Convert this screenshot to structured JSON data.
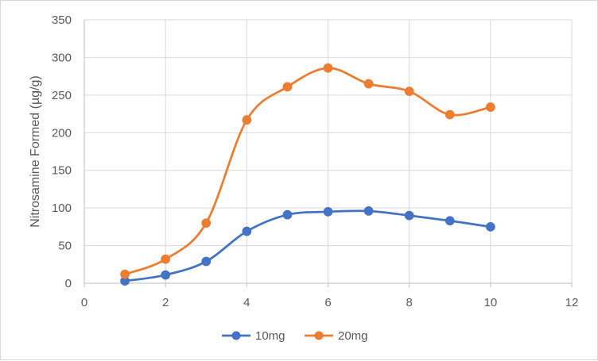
{
  "chart_data": {
    "type": "scatter",
    "title": "",
    "xlabel": "",
    "ylabel": "Nitrosamine Formed (µg/g)",
    "xlim": [
      0,
      12
    ],
    "ylim": [
      0,
      350
    ],
    "x_ticks": [
      0,
      2,
      4,
      6,
      8,
      10,
      12
    ],
    "y_ticks": [
      0,
      50,
      100,
      150,
      200,
      250,
      300,
      350
    ],
    "grid": true,
    "smooth_lines": true,
    "markers": true,
    "legend_position": "bottom",
    "series": [
      {
        "name": "10mg",
        "color": "#4472c4",
        "x": [
          1,
          2,
          3,
          4,
          5,
          6,
          7,
          8,
          9,
          10
        ],
        "y": [
          3,
          11,
          29,
          69,
          91,
          95,
          96,
          90,
          83,
          75
        ]
      },
      {
        "name": "20mg",
        "color": "#ed7d31",
        "x": [
          1,
          2,
          3,
          4,
          5,
          6,
          7,
          8,
          9,
          10
        ],
        "y": [
          12,
          32,
          80,
          217,
          261,
          286,
          265,
          255,
          224,
          234
        ]
      }
    ]
  }
}
